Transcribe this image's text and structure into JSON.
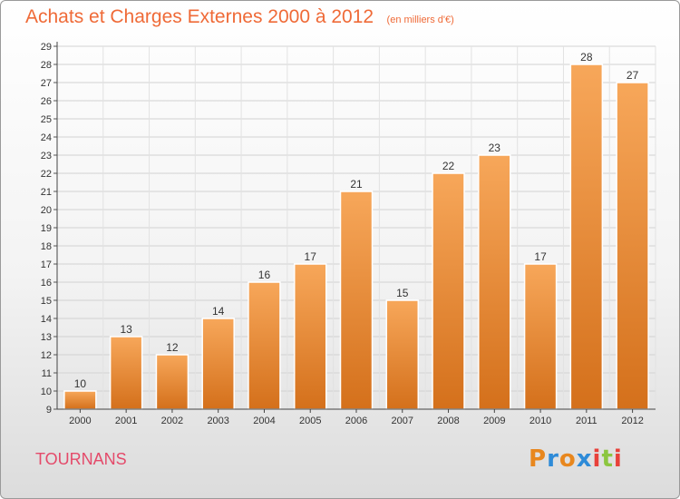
{
  "header": {
    "title": "Achats et Charges Externes 2000 à 2012",
    "subtitle": "(en milliers d'€)"
  },
  "footer": {
    "commune": "TOURNANS",
    "logo_text": "Proxiti",
    "logo_colors": [
      "#e8871e",
      "#2e8bd8",
      "#e8871e",
      "#2e8bd8",
      "#e8413a",
      "#8cc63f",
      "#e8413a"
    ]
  },
  "colors": {
    "bar_top": "#f7a75a",
    "bar_bottom": "#d4701b",
    "title": "#ef6a37",
    "commune": "#e44a6a"
  },
  "chart_data": {
    "type": "bar",
    "categories": [
      "2000",
      "2001",
      "2002",
      "2003",
      "2004",
      "2005",
      "2006",
      "2007",
      "2008",
      "2009",
      "2010",
      "2011",
      "2012"
    ],
    "values": [
      10,
      13,
      12,
      14,
      16,
      17,
      21,
      15,
      22,
      23,
      17,
      28,
      27
    ],
    "title": "Achats et Charges Externes 2000 à 2012",
    "ylim": [
      9,
      29
    ],
    "yticks": [
      9,
      10,
      11,
      12,
      13,
      14,
      15,
      16,
      17,
      18,
      19,
      20,
      21,
      22,
      23,
      24,
      25,
      26,
      27,
      28,
      29
    ],
    "grid": true,
    "legend": "none"
  }
}
